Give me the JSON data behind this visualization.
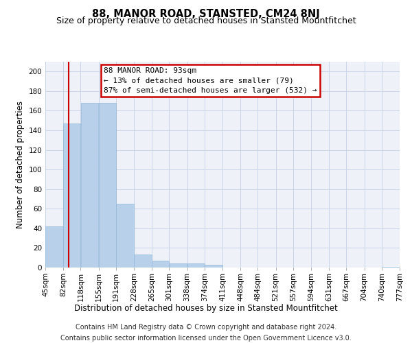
{
  "title": "88, MANOR ROAD, STANSTED, CM24 8NJ",
  "subtitle": "Size of property relative to detached houses in Stansted Mountfitchet",
  "xlabel": "Distribution of detached houses by size in Stansted Mountfitchet",
  "ylabel": "Number of detached properties",
  "bar_color": "#b8d0ea",
  "bar_edge_color": "#90b8d8",
  "grid_color": "#c8d4e8",
  "bg_color": "#eef2f8",
  "annotation_text": "88 MANOR ROAD: 93sqm\n← 13% of detached houses are smaller (79)\n87% of semi-detached houses are larger (532) →",
  "annotation_box_color": "white",
  "annotation_box_edge": "#cc0000",
  "vline_x": 93,
  "vline_color": "#cc0000",
  "bins": [
    45,
    82,
    118,
    155,
    191,
    228,
    265,
    301,
    338,
    374,
    411,
    448,
    484,
    521,
    557,
    594,
    631,
    667,
    704,
    740,
    777
  ],
  "bar_heights": [
    42,
    147,
    168,
    168,
    65,
    13,
    7,
    4,
    4,
    3,
    0,
    0,
    0,
    0,
    0,
    0,
    0,
    0,
    0,
    1
  ],
  "xlim_left": 45,
  "xlim_right": 777,
  "ylim": [
    0,
    210
  ],
  "yticks": [
    0,
    20,
    40,
    60,
    80,
    100,
    120,
    140,
    160,
    180,
    200
  ],
  "footer_line1": "Contains HM Land Registry data © Crown copyright and database right 2024.",
  "footer_line2": "Contains public sector information licensed under the Open Government Licence v3.0.",
  "title_fontsize": 10.5,
  "subtitle_fontsize": 9,
  "xlabel_fontsize": 8.5,
  "ylabel_fontsize": 8.5,
  "tick_fontsize": 7.5,
  "footer_fontsize": 7,
  "ann_fontsize": 8
}
